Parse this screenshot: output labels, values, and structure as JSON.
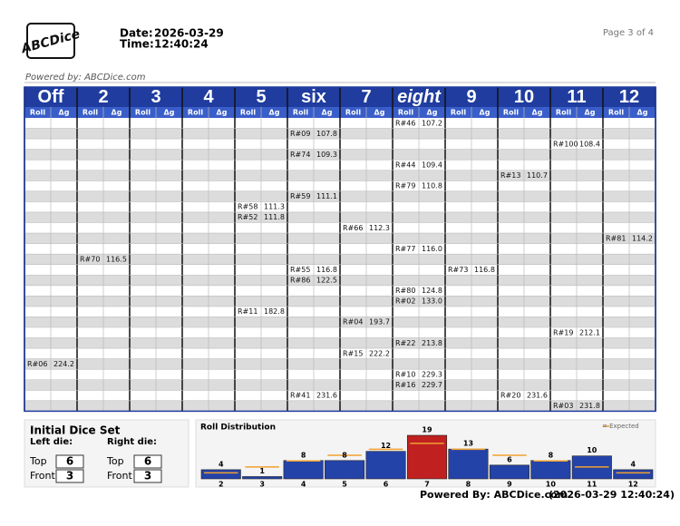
{
  "header": {
    "logo": "ABCDice",
    "powered_by": "Powered by: ABCDice.com",
    "date_label": "Date:",
    "date": "2026-03-29",
    "time_label": "Time:",
    "time": "12:40:24",
    "page": "Page 3 of 4"
  },
  "table": {
    "columns": [
      "Off",
      "2",
      "3",
      "4",
      "5",
      "six",
      "7",
      "eight",
      "9",
      "10",
      "11",
      "12"
    ],
    "subheaders": [
      "Roll",
      "Δg"
    ],
    "rows": [
      [
        null,
        null,
        null,
        null,
        null,
        null,
        null,
        [
          "R#46",
          "107.2"
        ],
        null,
        null,
        null,
        null
      ],
      [
        null,
        null,
        null,
        null,
        null,
        [
          "R#09",
          "107.8"
        ],
        null,
        null,
        null,
        null,
        null,
        null
      ],
      [
        null,
        null,
        null,
        null,
        null,
        null,
        null,
        null,
        null,
        null,
        [
          "R#100",
          "108.4"
        ],
        null
      ],
      [
        null,
        null,
        null,
        null,
        null,
        [
          "R#74",
          "109.3"
        ],
        null,
        null,
        null,
        null,
        null,
        null
      ],
      [
        null,
        null,
        null,
        null,
        null,
        null,
        null,
        [
          "R#44",
          "109.4"
        ],
        null,
        null,
        null,
        null
      ],
      [
        null,
        null,
        null,
        null,
        null,
        null,
        null,
        null,
        null,
        [
          "R#13",
          "110.7"
        ],
        null,
        null
      ],
      [
        null,
        null,
        null,
        null,
        null,
        null,
        null,
        [
          "R#79",
          "110.8"
        ],
        null,
        null,
        null,
        null
      ],
      [
        null,
        null,
        null,
        null,
        null,
        [
          "R#59",
          "111.1"
        ],
        null,
        null,
        null,
        null,
        null,
        null
      ],
      [
        null,
        null,
        null,
        null,
        [
          "R#58",
          "111.3"
        ],
        null,
        null,
        null,
        null,
        null,
        null,
        null
      ],
      [
        null,
        null,
        null,
        null,
        [
          "R#52",
          "111.8"
        ],
        null,
        null,
        null,
        null,
        null,
        null,
        null
      ],
      [
        null,
        null,
        null,
        null,
        null,
        null,
        [
          "R#66",
          "112.3"
        ],
        null,
        null,
        null,
        null,
        null
      ],
      [
        null,
        null,
        null,
        null,
        null,
        null,
        null,
        null,
        null,
        null,
        null,
        [
          "R#81",
          "114.2"
        ]
      ],
      [
        null,
        null,
        null,
        null,
        null,
        null,
        null,
        [
          "R#77",
          "116.0"
        ],
        null,
        null,
        null,
        null
      ],
      [
        null,
        [
          "R#70",
          "116.5"
        ],
        null,
        null,
        null,
        null,
        null,
        null,
        null,
        null,
        null,
        null
      ],
      [
        null,
        null,
        null,
        null,
        null,
        [
          "R#55",
          "116.8"
        ],
        null,
        null,
        [
          "R#73",
          "116.8"
        ],
        null,
        null,
        null
      ],
      [
        null,
        null,
        null,
        null,
        null,
        [
          "R#86",
          "122.5"
        ],
        null,
        null,
        null,
        null,
        null,
        null
      ],
      [
        null,
        null,
        null,
        null,
        null,
        null,
        null,
        [
          "R#80",
          "124.8"
        ],
        null,
        null,
        null,
        null
      ],
      [
        null,
        null,
        null,
        null,
        null,
        null,
        null,
        [
          "R#02",
          "133.0"
        ],
        null,
        null,
        null,
        null
      ],
      [
        null,
        null,
        null,
        null,
        [
          "R#11",
          "182.8"
        ],
        null,
        null,
        null,
        null,
        null,
        null,
        null
      ],
      [
        null,
        null,
        null,
        null,
        null,
        null,
        [
          "R#04",
          "193.7"
        ],
        null,
        null,
        null,
        null,
        null
      ],
      [
        null,
        null,
        null,
        null,
        null,
        null,
        null,
        null,
        null,
        null,
        [
          "R#19",
          "212.1"
        ],
        null
      ],
      [
        null,
        null,
        null,
        null,
        null,
        null,
        null,
        [
          "R#22",
          "213.8"
        ],
        null,
        null,
        null,
        null
      ],
      [
        null,
        null,
        null,
        null,
        null,
        null,
        [
          "R#15",
          "222.2"
        ],
        null,
        null,
        null,
        null,
        null
      ],
      [
        [
          "R#06",
          "224.2"
        ],
        null,
        null,
        null,
        null,
        null,
        null,
        null,
        null,
        null,
        null,
        null
      ],
      [
        null,
        null,
        null,
        null,
        null,
        null,
        null,
        [
          "R#10",
          "229.3"
        ],
        null,
        null,
        null,
        null
      ],
      [
        null,
        null,
        null,
        null,
        null,
        null,
        null,
        [
          "R#16",
          "229.7"
        ],
        null,
        null,
        null,
        null
      ],
      [
        null,
        null,
        null,
        null,
        null,
        [
          "R#41",
          "231.6"
        ],
        null,
        null,
        null,
        [
          "R#20",
          "231.6"
        ],
        null,
        null
      ],
      [
        null,
        null,
        null,
        null,
        null,
        null,
        null,
        null,
        null,
        null,
        [
          "R#03",
          "231.8"
        ],
        null
      ]
    ]
  },
  "dice_set": {
    "title": "Initial Dice Set",
    "left_label": "Left die:",
    "right_label": "Right die:",
    "left": {
      "top_label": "Top",
      "top": "6",
      "front_label": "Front",
      "front": "3"
    },
    "right": {
      "top_label": "Top",
      "top": "6",
      "front_label": "Front",
      "front": "3"
    }
  },
  "chart_data": {
    "type": "bar",
    "title": "Roll Distribution",
    "categories": [
      "2",
      "3",
      "4",
      "5",
      "6",
      "7",
      "8",
      "9",
      "10",
      "11",
      "12"
    ],
    "values": [
      4,
      1,
      8,
      8,
      12,
      19,
      13,
      6,
      8,
      10,
      4
    ],
    "colors": [
      "#2443a8",
      "#2443a8",
      "#2443a8",
      "#2443a8",
      "#2443a8",
      "#c02020",
      "#2443a8",
      "#2443a8",
      "#2443a8",
      "#2443a8",
      "#2443a8"
    ],
    "expected": [
      2.6,
      5.2,
      7.8,
      10.3,
      12.9,
      15.5,
      12.9,
      10.3,
      7.8,
      5.2,
      2.6
    ],
    "expected_label": "= Expected",
    "expected_color": "#f0a030"
  },
  "footer": {
    "powered_by": "Powered By: ABCDice.com",
    "timestamp": "(2026-03-29  12:40:24)"
  }
}
